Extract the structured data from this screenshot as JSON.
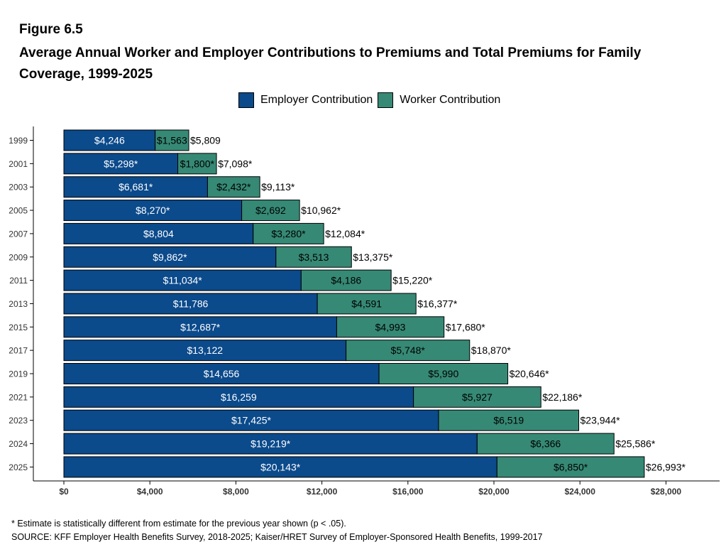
{
  "figure_label": "Figure 6.5",
  "title": "Average Annual Worker and Employer Contributions to Premiums and Total Premiums for Family Coverage, 1999-2025",
  "legend": [
    {
      "label": "Employer Contribution",
      "color": "#0b4a8b"
    },
    {
      "label": "Worker Contribution",
      "color": "#368975"
    }
  ],
  "chart_data": {
    "type": "bar",
    "orientation": "horizontal",
    "stacked": true,
    "categories": [
      "1999",
      "2001",
      "2003",
      "2005",
      "2007",
      "2009",
      "2011",
      "2013",
      "2015",
      "2017",
      "2019",
      "2021",
      "2023",
      "2024",
      "2025"
    ],
    "series": [
      {
        "name": "Employer Contribution",
        "color": "#0b4a8b",
        "values": [
          4246,
          5298,
          6681,
          8270,
          8804,
          9862,
          11034,
          11786,
          12687,
          13122,
          14656,
          16259,
          17425,
          19219,
          20143
        ],
        "labels": [
          "$4,246",
          "$5,298*",
          "$6,681*",
          "$8,270*",
          "$8,804",
          "$9,862*",
          "$11,034*",
          "$11,786",
          "$12,687*",
          "$13,122",
          "$14,656",
          "$16,259",
          "$17,425*",
          "$19,219*",
          "$20,143*"
        ]
      },
      {
        "name": "Worker Contribution",
        "color": "#368975",
        "values": [
          1563,
          1800,
          2432,
          2692,
          3280,
          3513,
          4186,
          4591,
          4993,
          5748,
          5990,
          5927,
          6519,
          6366,
          6850
        ],
        "labels": [
          "$1,563",
          "$1,800*",
          "$2,432*",
          "$2,692",
          "$3,280*",
          "$3,513",
          "$4,186",
          "$4,591",
          "$4,993",
          "$5,748*",
          "$5,990",
          "$5,927",
          "$6,519",
          "$6,366",
          "$6,850*"
        ]
      }
    ],
    "totals": {
      "values": [
        5809,
        7098,
        9113,
        10962,
        12084,
        13375,
        15220,
        16377,
        17680,
        18870,
        20646,
        22186,
        23944,
        25586,
        26993
      ],
      "labels": [
        "$5,809",
        "$7,098*",
        "$9,113*",
        "$10,962*",
        "$12,084*",
        "$13,375*",
        "$15,220*",
        "$16,377*",
        "$17,680*",
        "$18,870*",
        "$20,646*",
        "$22,186*",
        "$23,944*",
        "$25,586*",
        "$26,993*"
      ]
    },
    "xlim": [
      0,
      30000
    ],
    "xticks": [
      0,
      4000,
      8000,
      12000,
      16000,
      20000,
      24000,
      28000
    ],
    "xtick_labels": [
      "$0",
      "$4,000",
      "$8,000",
      "$12,000",
      "$16,000",
      "$20,000",
      "$24,000",
      "$28,000"
    ],
    "legend_position": "top",
    "grid": false
  },
  "footnote": "* Estimate is statistically different from estimate for the previous year shown (p < .05).",
  "source": "SOURCE: KFF Employer Health Benefits Survey, 2018-2025; Kaiser/HRET Survey of Employer-Sponsored Health Benefits, 1999-2017"
}
